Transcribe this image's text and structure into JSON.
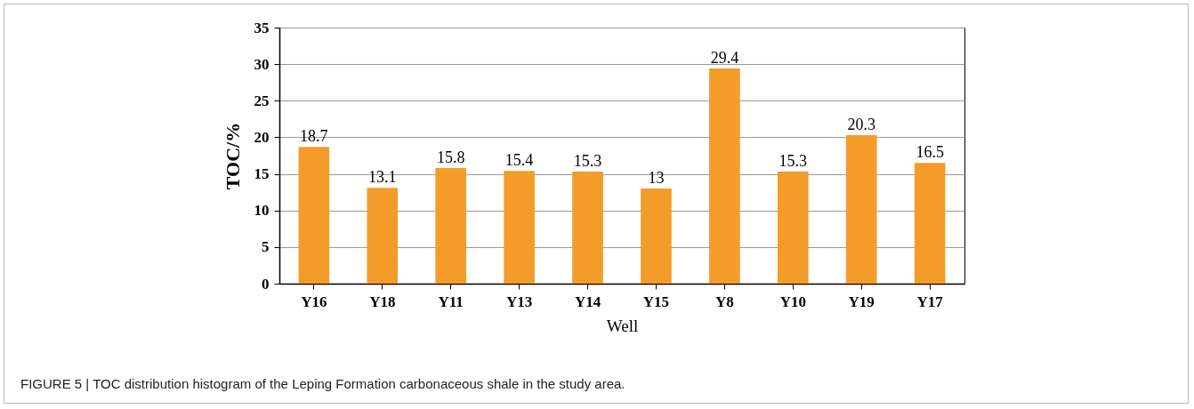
{
  "chart_data": {
    "type": "bar",
    "xlabel": "Well",
    "ylabel": "TOC/%",
    "categories": [
      "Y16",
      "Y18",
      "Y11",
      "Y13",
      "Y14",
      "Y15",
      "Y8",
      "Y10",
      "Y19",
      "Y17"
    ],
    "values": [
      18.7,
      13.1,
      15.8,
      15.4,
      15.3,
      13,
      29.4,
      15.3,
      20.3,
      16.5
    ],
    "color": "#f39c2a",
    "ylim": [
      0,
      35
    ],
    "yticks": [
      0,
      5,
      10,
      15,
      20,
      25,
      30,
      35
    ],
    "grid": "y",
    "data_labels": true,
    "annotations": [
      "FIGURE 5 | TOC distribution histogram of the Leping Formation carbonaceous shale in the study area."
    ]
  }
}
